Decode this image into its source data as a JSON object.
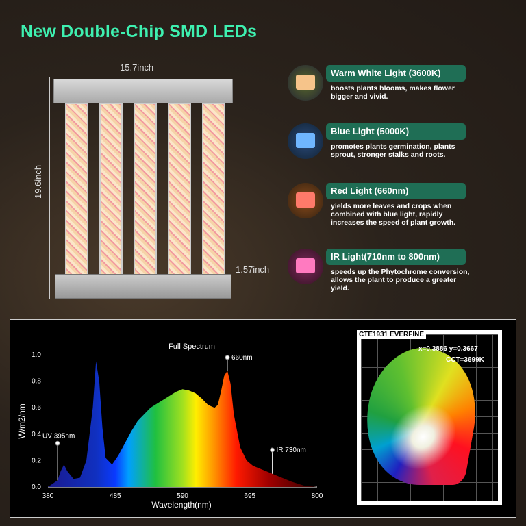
{
  "title": "New Double-Chip SMD LEDs",
  "dimensions": {
    "width": "15.7inch",
    "height": "19.6inch",
    "depth": "1.57inch"
  },
  "features": [
    {
      "title": "Warm White Light (3600K)",
      "desc": "boosts plants blooms, makes flower bigger and vivid.",
      "color": "#f6c48a"
    },
    {
      "title": "Blue Light (5000K)",
      "desc": "promotes plants germination, plants sprout, stronger stalks and roots.",
      "color": "#6fb6ff"
    },
    {
      "title": "Red Light (660nm)",
      "desc": "yields more leaves and crops when combined with blue light, rapidly increases the speed of plant growth.",
      "color": "#ff7a6a"
    },
    {
      "title": "IR Light(710nm to 800nm)",
      "desc": "speeds up the Phytochrome conversion, allows the plant to produce a greater yield.",
      "color": "#ff7ac0"
    }
  ],
  "cie": {
    "label": "CTE1931 EVERFINE",
    "xy": "x=0.3886  y=0.3667",
    "cct": "CCT=3699K"
  },
  "chart_data": {
    "type": "area",
    "title": "Full Spectrum",
    "xlabel": "Wavelength(nm)",
    "ylabel": "W/m2/nm",
    "xlim": [
      380,
      800
    ],
    "ylim": [
      0,
      1.0
    ],
    "xticks": [
      380,
      485,
      590,
      695,
      800
    ],
    "yticks": [
      0.0,
      0.2,
      0.4,
      0.6,
      0.8,
      1.0
    ],
    "x": [
      380,
      395,
      400,
      405,
      410,
      420,
      430,
      440,
      450,
      455,
      460,
      465,
      470,
      480,
      490,
      500,
      510,
      520,
      530,
      540,
      550,
      560,
      570,
      580,
      590,
      600,
      610,
      620,
      630,
      640,
      645,
      650,
      655,
      660,
      665,
      670,
      680,
      690,
      700,
      710,
      720,
      730,
      740,
      750,
      760,
      780,
      800
    ],
    "y": [
      0,
      0.05,
      0.12,
      0.17,
      0.12,
      0.06,
      0.07,
      0.2,
      0.6,
      0.95,
      0.8,
      0.45,
      0.22,
      0.17,
      0.24,
      0.33,
      0.42,
      0.5,
      0.55,
      0.6,
      0.63,
      0.66,
      0.69,
      0.72,
      0.74,
      0.73,
      0.71,
      0.67,
      0.62,
      0.6,
      0.62,
      0.72,
      0.84,
      0.88,
      0.78,
      0.55,
      0.3,
      0.2,
      0.16,
      0.14,
      0.12,
      0.1,
      0.08,
      0.06,
      0.04,
      0.01,
      0
    ],
    "annotations": [
      {
        "text": "UV 395nm",
        "x": 395,
        "y": 0.33
      },
      {
        "text": "660nm",
        "x": 660,
        "y": 0.98
      },
      {
        "text": "IR 730nm",
        "x": 730,
        "y": 0.28
      }
    ]
  }
}
